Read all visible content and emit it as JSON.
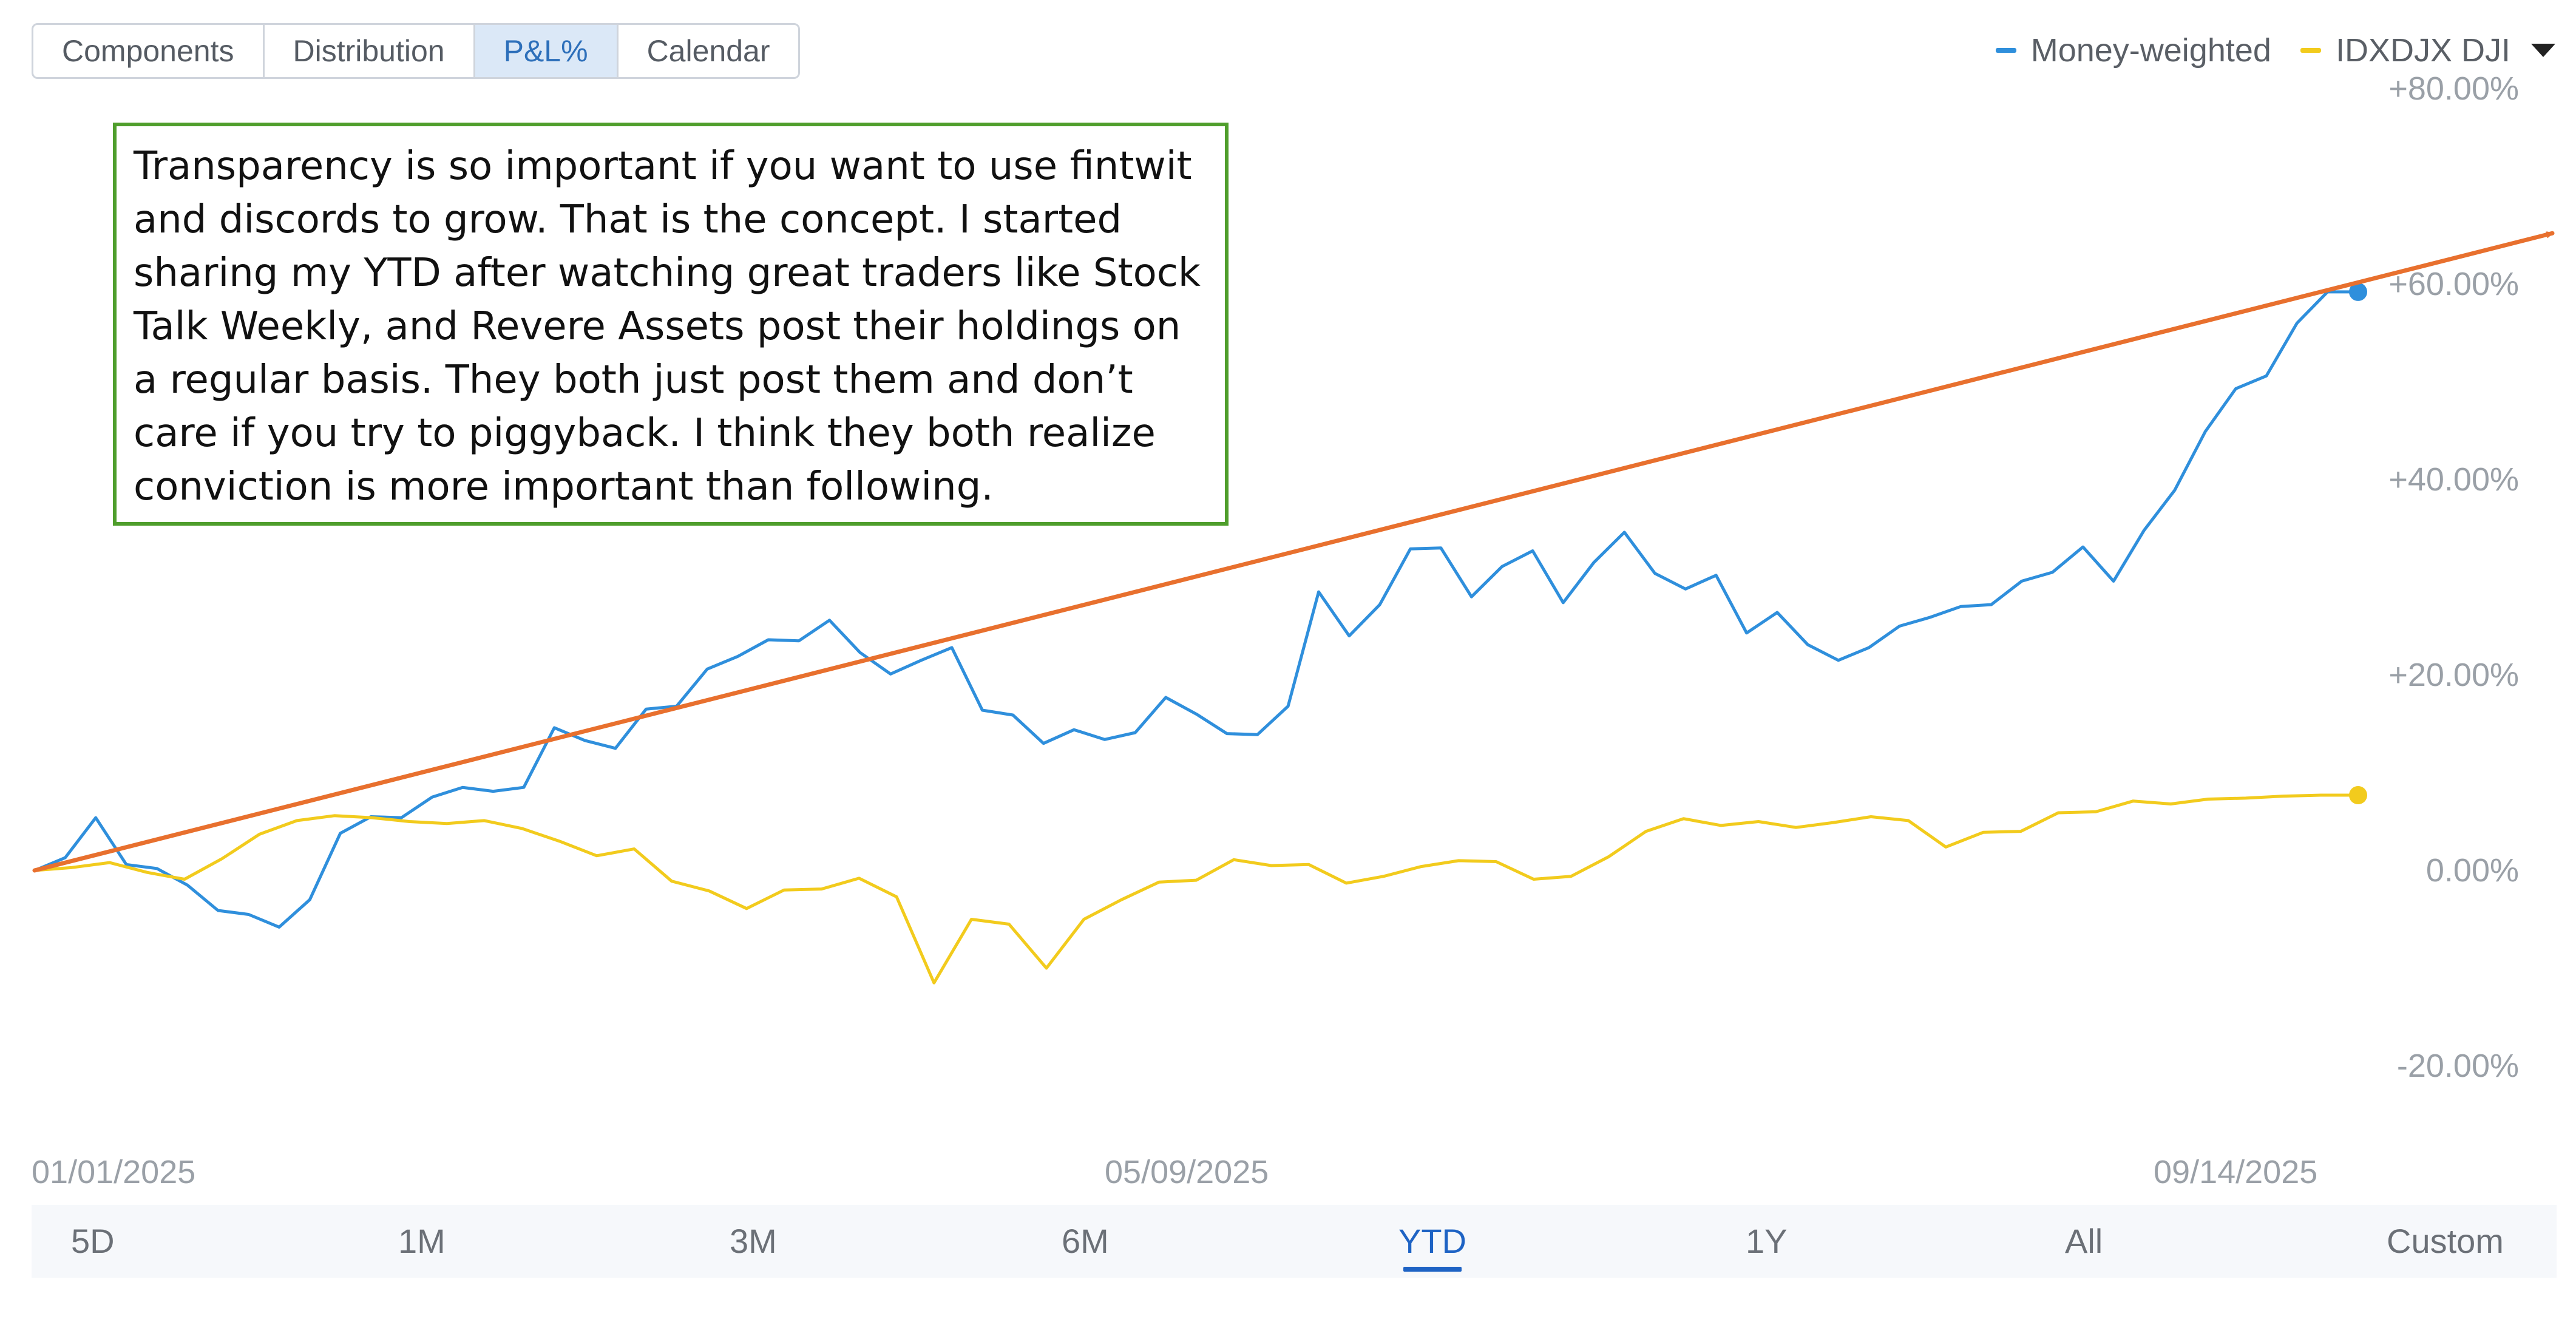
{
  "tabs": [
    "Components",
    "Distribution",
    "P&L%",
    "Calendar"
  ],
  "active_tab": "P&L%",
  "legend": {
    "items": [
      {
        "label": "Money-weighted",
        "color": "#2f8fdc"
      },
      {
        "label": "IDXDJX DJI",
        "color": "#f2cb1d"
      }
    ]
  },
  "annotation": {
    "text": "Transparency is so important if you want to use fintwit and discords to grow. That is the concept. I started sharing my YTD after watching great traders like Stock Talk Weekly, and Revere Assets post their holdings on a regular basis. They both just post them and don’t care if you try to piggyback. I think they both realize conviction is more important than following.",
    "border_color": "#4f9e2c"
  },
  "x_axis_labels": [
    "01/01/2025",
    "05/09/2025",
    "09/14/2025"
  ],
  "range_buttons": [
    "5D",
    "1M",
    "3M",
    "6M",
    "YTD",
    "1Y",
    "All",
    "Custom"
  ],
  "active_range": "YTD",
  "chart_data": {
    "type": "line",
    "x_start": "01/01/2025",
    "x_end": "09/14/2025",
    "y_ticks": [
      "+80.00%",
      "+60.00%",
      "+40.00%",
      "+20.00%",
      "0.00%",
      "-20.00%"
    ],
    "ylim": [
      -20,
      80
    ],
    "series": [
      {
        "name": "Money-weighted",
        "color": "#2f8fdc",
        "values": [
          0,
          1.3,
          5.4,
          0.6,
          0.2,
          -1.5,
          -4.1,
          -4.5,
          -5.8,
          -3.0,
          3.8,
          5.5,
          5.4,
          7.5,
          8.5,
          8.1,
          8.5,
          14.6,
          13.3,
          12.5,
          16.5,
          16.8,
          20.6,
          21.9,
          23.6,
          23.5,
          25.6,
          22.3,
          20.1,
          21.5,
          22.8,
          16.4,
          15.9,
          13.0,
          14.4,
          13.4,
          14.1,
          17.7,
          16.0,
          14.0,
          13.9,
          16.8,
          28.5,
          24.0,
          27.2,
          32.9,
          33.0,
          28.0,
          31.1,
          32.7,
          27.4,
          31.5,
          34.6,
          30.4,
          28.8,
          30.2,
          24.3,
          26.4,
          23.1,
          21.5,
          22.8,
          25.0,
          25.9,
          27.0,
          27.2,
          29.6,
          30.5,
          33.1,
          29.6,
          34.8,
          38.9,
          44.9,
          49.3,
          50.6,
          56.0,
          59.2,
          59.2
        ],
        "end_marker": true
      },
      {
        "name": "IDXDJX DJI",
        "color": "#f2cb1d",
        "values": [
          0,
          0.3,
          0.8,
          -0.2,
          -0.9,
          1.2,
          3.7,
          5.1,
          5.6,
          5.4,
          5.0,
          4.8,
          5.1,
          4.3,
          3.0,
          1.5,
          2.2,
          -1.1,
          -2.1,
          -3.9,
          -2.0,
          -1.9,
          -0.8,
          -2.7,
          -11.5,
          -5.0,
          -5.5,
          -10.0,
          -5.0,
          -3.0,
          -1.2,
          -1.0,
          1.1,
          0.5,
          0.6,
          -1.3,
          -0.6,
          0.4,
          1.0,
          0.9,
          -0.9,
          -0.6,
          1.4,
          4.0,
          5.3,
          4.6,
          5.0,
          4.4,
          4.9,
          5.5,
          5.1,
          2.4,
          3.9,
          4.0,
          5.9,
          6.0,
          7.1,
          6.8,
          7.3,
          7.4,
          7.6,
          7.7,
          7.7
        ],
        "end_marker": true
      }
    ],
    "trend_arrow": {
      "from_value": 0,
      "to_value": 65.2,
      "color": "#e8702e"
    }
  }
}
